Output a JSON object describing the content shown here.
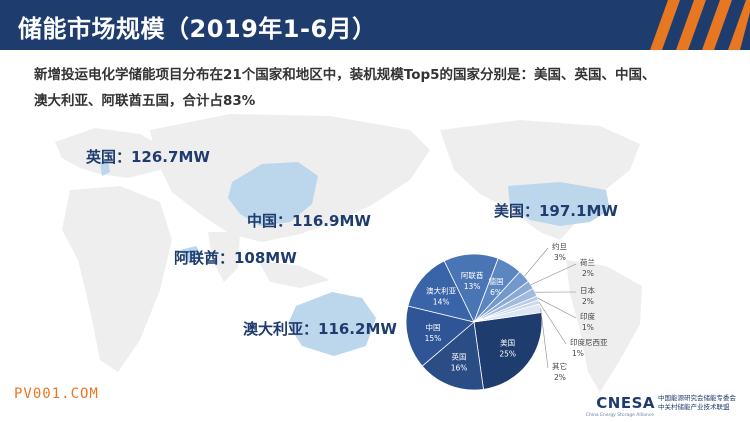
{
  "header": {
    "title": "储能市场规模（2019年1-6月）",
    "accent_color": "#e87722",
    "bg_color": "#1f3c6e"
  },
  "subtitle": {
    "line1": "新增投运电化学储能项目分布在21个国家和地区中，装机规模Top5的国家分别是：美国、英国、中国、",
    "line2": "澳大利亚、阿联酋五国，合计占83%"
  },
  "map_labels": {
    "uk": "英国：126.7MW",
    "china": "中国：116.9MW",
    "uae": "阿联酋：108MW",
    "australia": "澳大利亚：116.2MW",
    "usa": "美国：197.1MW"
  },
  "chart_data": {
    "type": "pie",
    "slices": [
      {
        "label": "美国",
        "value": 25,
        "text": "25%",
        "color": "#1f3c6e"
      },
      {
        "label": "英国",
        "value": 16,
        "text": "16%",
        "color": "#2a4d86"
      },
      {
        "label": "中国",
        "value": 15,
        "text": "15%",
        "color": "#2f5597"
      },
      {
        "label": "澳大利亚",
        "value": 14,
        "text": "14%",
        "color": "#3a64a8"
      },
      {
        "label": "阿联酋",
        "value": 13,
        "text": "13%",
        "color": "#4a75b5"
      },
      {
        "label": "德国",
        "value": 6,
        "text": "6%",
        "color": "#5b86c2"
      },
      {
        "label": "约旦",
        "value": 3,
        "text": "3%",
        "color": "#7298cc"
      },
      {
        "label": "荷兰",
        "value": 2,
        "text": "2%",
        "color": "#8aa9d5"
      },
      {
        "label": "日本",
        "value": 2,
        "text": "2%",
        "color": "#a2bade"
      },
      {
        "label": "印度",
        "value": 1,
        "text": "1%",
        "color": "#b9cbe6"
      },
      {
        "label": "印度尼西亚",
        "value": 1,
        "text": "1%",
        "color": "#ccd9ed"
      },
      {
        "label": "其它",
        "value": 2,
        "text": "2%",
        "color": "#dde6f3"
      }
    ]
  },
  "footer": {
    "watermark": "PV001.COM",
    "logo": "CNESA",
    "org_line1": "中国能源研究会储能专委会",
    "org_line2": "中关村储能产业技术联盟",
    "org_en": "China Energy Storage Alliance"
  }
}
